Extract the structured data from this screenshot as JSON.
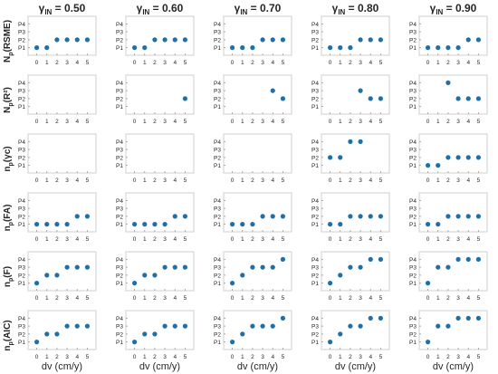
{
  "chart_data": {
    "type": "scatter",
    "columns": [
      {
        "gamma_symbol": "γ",
        "gamma_sub": "IN",
        "value_text": " = 0.50"
      },
      {
        "gamma_symbol": "γ",
        "gamma_sub": "IN",
        "value_text": " = 0.60"
      },
      {
        "gamma_symbol": "γ",
        "gamma_sub": "IN",
        "value_text": " = 0.70"
      },
      {
        "gamma_symbol": "γ",
        "gamma_sub": "IN",
        "value_text": " = 0.80"
      },
      {
        "gamma_symbol": "γ",
        "gamma_sub": "IN",
        "value_text": " = 0.90"
      }
    ],
    "rows": [
      {
        "ylabel_main": "N",
        "ylabel_sub": "p",
        "ylabel_rest": "(RSME)"
      },
      {
        "ylabel_main": "N",
        "ylabel_sub": "p",
        "ylabel_rest": "(R²)"
      },
      {
        "ylabel_main": "n",
        "ylabel_sub": "p",
        "ylabel_rest": "(γc)"
      },
      {
        "ylabel_main": "n",
        "ylabel_sub": "p",
        "ylabel_rest": "(FA)"
      },
      {
        "ylabel_main": "n",
        "ylabel_sub": "p",
        "ylabel_rest": "(F)"
      },
      {
        "ylabel_main": "n",
        "ylabel_sub": "p",
        "ylabel_rest": "(AIC)"
      }
    ],
    "xlabel": "dv (cm/y)",
    "x_ticks": [
      "0",
      "1",
      "2",
      "3",
      "4",
      "5"
    ],
    "y_ticks": [
      "P1",
      "P2",
      "P3",
      "P4"
    ],
    "xlim": [
      -0.5,
      5.5
    ],
    "ylim": [
      0.5,
      4.5
    ],
    "marker_color": "#1f6fa8",
    "axis_color": "#cfcfcf",
    "text_color": "#262626",
    "grid": false,
    "panels": [
      [
        {
          "x": [
            0,
            1,
            2,
            3,
            4,
            5
          ],
          "y": [
            1,
            1,
            2,
            2,
            2,
            2
          ]
        },
        {
          "x": [],
          "y": []
        },
        {
          "x": [],
          "y": []
        },
        {
          "x": [
            0,
            1,
            2,
            3,
            4,
            5
          ],
          "y": [
            1,
            1,
            1,
            1,
            2,
            2
          ]
        },
        {
          "x": [
            0,
            1,
            2,
            3,
            4,
            5
          ],
          "y": [
            1,
            2,
            2,
            3,
            3,
            3
          ]
        },
        {
          "x": [
            0,
            1,
            2,
            3,
            4,
            5
          ],
          "y": [
            1,
            2,
            2,
            3,
            3,
            3
          ]
        }
      ],
      [
        {
          "x": [
            0,
            1,
            2,
            3,
            4,
            5
          ],
          "y": [
            1,
            1,
            2,
            2,
            2,
            2
          ]
        },
        {
          "x": [
            5
          ],
          "y": [
            2
          ]
        },
        {
          "x": [],
          "y": []
        },
        {
          "x": [
            0,
            1,
            2,
            3,
            4,
            5
          ],
          "y": [
            1,
            1,
            1,
            1,
            2,
            2
          ]
        },
        {
          "x": [
            0,
            1,
            2,
            3,
            4,
            5
          ],
          "y": [
            1,
            2,
            2,
            3,
            3,
            3
          ]
        },
        {
          "x": [
            0,
            1,
            2,
            3,
            4,
            5
          ],
          "y": [
            1,
            2,
            2,
            3,
            3,
            3
          ]
        }
      ],
      [
        {
          "x": [
            0,
            1,
            2,
            3,
            4,
            5
          ],
          "y": [
            1,
            1,
            1,
            2,
            2,
            2
          ]
        },
        {
          "x": [
            4,
            5
          ],
          "y": [
            3,
            2
          ]
        },
        {
          "x": [],
          "y": []
        },
        {
          "x": [
            0,
            1,
            2,
            3,
            4,
            5
          ],
          "y": [
            1,
            1,
            1,
            2,
            2,
            2
          ]
        },
        {
          "x": [
            0,
            1,
            2,
            3,
            4,
            5
          ],
          "y": [
            1,
            2,
            3,
            3,
            3,
            4
          ]
        },
        {
          "x": [
            0,
            1,
            2,
            3,
            4,
            5
          ],
          "y": [
            1,
            2,
            3,
            3,
            3,
            4
          ]
        }
      ],
      [
        {
          "x": [
            0,
            1,
            2,
            3,
            4,
            5
          ],
          "y": [
            1,
            1,
            1,
            2,
            2,
            2
          ]
        },
        {
          "x": [
            3,
            4,
            5
          ],
          "y": [
            3,
            2,
            2
          ]
        },
        {
          "x": [
            0,
            1,
            2,
            3
          ],
          "y": [
            2,
            2,
            4,
            4
          ]
        },
        {
          "x": [
            0,
            1,
            2,
            3,
            4,
            5
          ],
          "y": [
            1,
            1,
            2,
            2,
            2,
            2
          ]
        },
        {
          "x": [
            0,
            1,
            2,
            3,
            4,
            5
          ],
          "y": [
            1,
            2,
            3,
            3,
            4,
            4
          ]
        },
        {
          "x": [
            0,
            1,
            2,
            3,
            4,
            5
          ],
          "y": [
            1,
            2,
            3,
            3,
            4,
            4
          ]
        }
      ],
      [
        {
          "x": [
            0,
            1,
            2,
            3,
            4,
            5
          ],
          "y": [
            1,
            1,
            1,
            1,
            2,
            2
          ]
        },
        {
          "x": [
            2,
            3,
            4,
            5
          ],
          "y": [
            4,
            2,
            2,
            2
          ]
        },
        {
          "x": [
            0,
            1,
            2,
            3,
            4,
            5
          ],
          "y": [
            1,
            1,
            2,
            2,
            2,
            2
          ]
        },
        {
          "x": [
            0,
            1,
            2,
            3,
            4,
            5
          ],
          "y": [
            1,
            1,
            2,
            2,
            2,
            2
          ]
        },
        {
          "x": [
            0,
            1,
            2,
            3,
            4,
            5
          ],
          "y": [
            1,
            3,
            3,
            4,
            4,
            4
          ]
        },
        {
          "x": [
            0,
            1,
            2,
            3,
            4,
            5
          ],
          "y": [
            1,
            3,
            3,
            4,
            4,
            4
          ]
        }
      ]
    ]
  }
}
